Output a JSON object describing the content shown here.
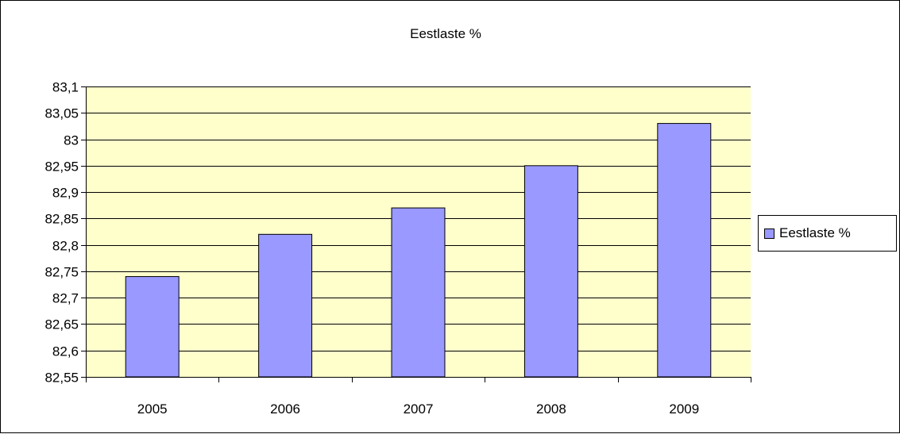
{
  "chart_data": {
    "type": "bar",
    "title": "Eestlaste %",
    "categories": [
      "2005",
      "2006",
      "2007",
      "2008",
      "2009"
    ],
    "series": [
      {
        "name": "Eestlaste %",
        "values": [
          82.74,
          82.82,
          82.87,
          82.95,
          83.03
        ]
      }
    ],
    "ylim": [
      82.55,
      83.1
    ],
    "ytick_step": 0.05,
    "y_tick_labels": [
      "82,55",
      "82,6",
      "82,65",
      "82,7",
      "82,75",
      "82,8",
      "82,85",
      "82,9",
      "82,95",
      "83",
      "83,05",
      "83,1"
    ],
    "xlabel": "",
    "ylabel": "",
    "grid": true,
    "legend_position": "right",
    "colors": {
      "bar": "#9999FF",
      "plot_background": "#FFFFCC",
      "gridline": "#000000"
    }
  }
}
